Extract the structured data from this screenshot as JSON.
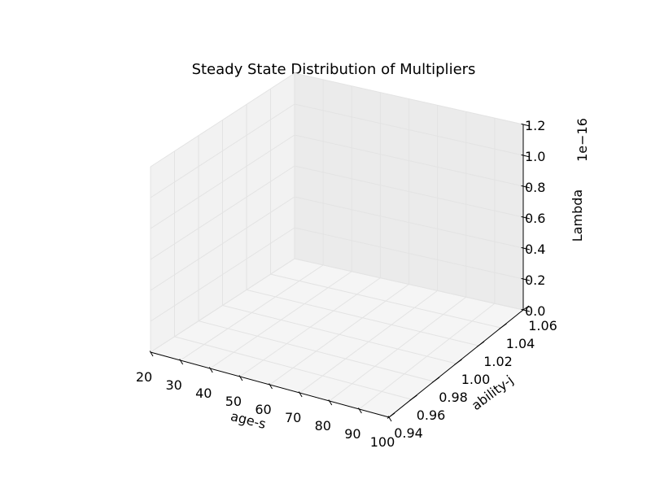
{
  "chart_data": {
    "type": "scatter",
    "projection": "3d",
    "title": "Steady State Distribution of Multipliers",
    "xlabel": "age-s",
    "ylabel": "ability-j",
    "zlabel": "Lambda",
    "z_offset_label": "1e−16",
    "xlim": [
      20,
      100
    ],
    "ylim": [
      0.94,
      1.06
    ],
    "zlim": [
      0,
      1.2
    ],
    "xticks": [
      "20",
      "30",
      "40",
      "50",
      "60",
      "70",
      "80",
      "90",
      "100"
    ],
    "yticks": [
      "0.94",
      "0.96",
      "0.98",
      "1.00",
      "1.02",
      "1.04",
      "1.06"
    ],
    "zticks": [
      "0.0",
      "0.2",
      "0.4",
      "0.6",
      "0.8",
      "1.0",
      "1.2"
    ],
    "grid": true,
    "series": [],
    "colors": {
      "pane_left": "#f2f2f2",
      "pane_back": "#ebebeb",
      "pane_floor": "#f5f5f5",
      "grid": "#e3e3e3"
    }
  }
}
